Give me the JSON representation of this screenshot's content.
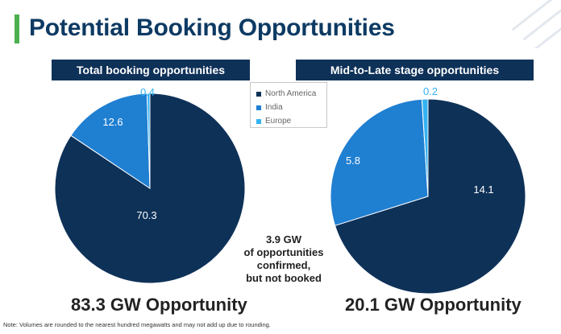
{
  "title": "Potential Booking Opportunities",
  "colors": {
    "accent_bar": "#4caf50",
    "title": "#0d3a63",
    "header_bg": "#0e3158",
    "north_america": "#0e3158",
    "india": "#1f7fd1",
    "europe": "#35b2f2"
  },
  "legend": {
    "items": [
      {
        "label": "North America",
        "color": "#0e3158"
      },
      {
        "label": "India",
        "color": "#1f7fd1"
      },
      {
        "label": "Europe",
        "color": "#35b2f2"
      }
    ]
  },
  "chart_data": [
    {
      "type": "pie",
      "title": "Total booking opportunities",
      "categories": [
        "North America",
        "India",
        "Europe"
      ],
      "values": [
        70.3,
        12.6,
        0.4
      ],
      "labels": [
        "70.3",
        "12.6",
        "0.4"
      ],
      "caption": "83.3 GW Opportunity"
    },
    {
      "type": "pie",
      "title": "Mid-to-Late stage opportunities",
      "categories": [
        "North America",
        "India",
        "Europe"
      ],
      "values": [
        14.1,
        5.8,
        0.2
      ],
      "labels": [
        "14.1",
        "5.8",
        "0.2"
      ],
      "caption": "20.1 GW Opportunity"
    }
  ],
  "center_note": [
    "3.9 GW",
    "of opportunities",
    "confirmed,",
    "but not booked"
  ],
  "footnote": "Note: Volumes are rounded to the nearest hundred megawatts and may not add up due to rounding."
}
